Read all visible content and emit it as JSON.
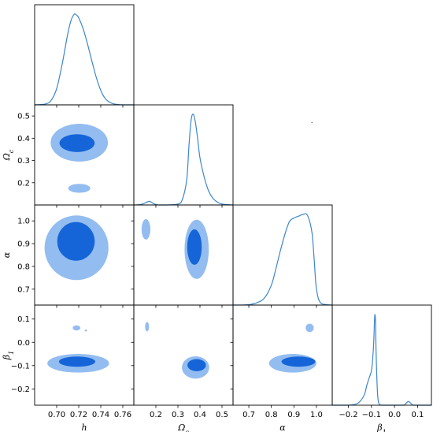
{
  "chart_data": {
    "type": "corner",
    "parameters": [
      {
        "key": "h",
        "label": "h",
        "range": [
          0.68,
          0.77
        ],
        "ticks": [
          0.7,
          0.72,
          0.74,
          0.76
        ],
        "tick_labels": [
          "0.70",
          "0.72",
          "0.74",
          "0.76"
        ]
      },
      {
        "key": "omega_c",
        "label": "Ωc",
        "range": [
          0.1,
          0.55
        ],
        "ticks": [
          0.2,
          0.3,
          0.4,
          0.5
        ],
        "tick_labels": [
          "0.2",
          "0.3",
          "0.4",
          "0.5"
        ]
      },
      {
        "key": "alpha",
        "label": "α",
        "range": [
          0.63,
          1.07
        ],
        "ticks": [
          0.7,
          0.8,
          0.9,
          1.0
        ],
        "tick_labels": [
          "0.7",
          "0.8",
          "0.9",
          "1.0"
        ]
      },
      {
        "key": "beta_1",
        "label": "β1",
        "range": [
          -0.27,
          0.16
        ],
        "ticks": [
          -0.2,
          -0.1,
          0.0,
          0.1
        ],
        "tick_labels": [
          "−0.2",
          "−0.1",
          "0.0",
          "0.1"
        ]
      }
    ],
    "colors": {
      "inner": "#1665d8",
      "outer": "#93bdf0",
      "line": "#3c86cc"
    },
    "marginals": [
      {
        "param": "h",
        "x": [
          0.68,
          0.69,
          0.695,
          0.7,
          0.705,
          0.71,
          0.713,
          0.716,
          0.718,
          0.72,
          0.724,
          0.728,
          0.732,
          0.736,
          0.74,
          0.744,
          0.748,
          0.752,
          0.76,
          0.77
        ],
        "y": [
          0.0,
          0.01,
          0.05,
          0.18,
          0.45,
          0.78,
          0.93,
          1.0,
          0.99,
          0.96,
          0.84,
          0.67,
          0.48,
          0.3,
          0.16,
          0.07,
          0.03,
          0.01,
          0.0,
          0.0
        ]
      },
      {
        "param": "omega_c",
        "x": [
          0.1,
          0.13,
          0.15,
          0.17,
          0.19,
          0.21,
          0.25,
          0.3,
          0.32,
          0.34,
          0.35,
          0.36,
          0.37,
          0.38,
          0.39,
          0.4,
          0.42,
          0.44,
          0.46,
          0.48,
          0.5,
          0.55
        ],
        "y": [
          0.0,
          0.005,
          0.02,
          0.04,
          0.015,
          0.0,
          0.0,
          0.01,
          0.06,
          0.28,
          0.65,
          0.94,
          1.0,
          0.9,
          0.72,
          0.52,
          0.3,
          0.15,
          0.07,
          0.03,
          0.01,
          0.0
        ]
      },
      {
        "param": "alpha",
        "x": [
          0.63,
          0.7,
          0.74,
          0.77,
          0.8,
          0.82,
          0.84,
          0.86,
          0.88,
          0.9,
          0.92,
          0.94,
          0.96,
          0.98,
          0.99,
          1.0,
          1.02,
          1.07
        ],
        "y": [
          0.0,
          0.005,
          0.03,
          0.08,
          0.22,
          0.4,
          0.6,
          0.78,
          0.92,
          0.96,
          0.98,
          1.0,
          0.99,
          0.8,
          0.5,
          0.18,
          0.02,
          0.0
        ]
      },
      {
        "param": "beta_1",
        "x": [
          -0.27,
          -0.2,
          -0.17,
          -0.15,
          -0.13,
          -0.12,
          -0.11,
          -0.1,
          -0.095,
          -0.09,
          -0.087,
          -0.085,
          -0.082,
          -0.08,
          -0.075,
          -0.07,
          -0.06,
          -0.04,
          0.0,
          0.04,
          0.06,
          0.08,
          0.1,
          0.16
        ],
        "y": [
          0.0,
          0.0,
          0.01,
          0.04,
          0.12,
          0.22,
          0.3,
          0.38,
          0.5,
          0.7,
          0.92,
          1.0,
          0.9,
          0.6,
          0.2,
          0.04,
          0.0,
          0.0,
          0.0,
          0.0,
          0.04,
          0.0,
          0.0,
          0.0
        ]
      }
    ],
    "contours": [
      {
        "x": "h",
        "y": "omega_c",
        "outer": [
          {
            "cx": 0.7205,
            "cy": 0.38,
            "rx": 0.026,
            "ry": 0.085
          },
          {
            "cx": 0.7205,
            "cy": 0.175,
            "rx": 0.01,
            "ry": 0.02
          }
        ],
        "inner": [
          {
            "cx": 0.7185,
            "cy": 0.378,
            "rx": 0.016,
            "ry": 0.04
          }
        ]
      },
      {
        "x": "h",
        "y": "alpha",
        "outer": [
          {
            "cx": 0.718,
            "cy": 0.882,
            "rx": 0.029,
            "ry": 0.142
          }
        ],
        "inner": [
          {
            "cx": 0.7175,
            "cy": 0.91,
            "rx": 0.017,
            "ry": 0.085
          }
        ]
      },
      {
        "x": "omega_c",
        "y": "alpha",
        "outer": [
          {
            "cx": 0.385,
            "cy": 0.875,
            "rx": 0.055,
            "ry": 0.13
          },
          {
            "cx": 0.155,
            "cy": 0.963,
            "rx": 0.02,
            "ry": 0.045
          }
        ],
        "inner": [
          {
            "cx": 0.375,
            "cy": 0.885,
            "rx": 0.033,
            "ry": 0.078
          }
        ]
      },
      {
        "x": "h",
        "y": "beta_1",
        "outer": [
          {
            "cx": 0.7195,
            "cy": -0.09,
            "rx": 0.028,
            "ry": 0.04
          },
          {
            "cx": 0.718,
            "cy": 0.062,
            "rx": 0.0035,
            "ry": 0.011
          },
          {
            "cx": 0.7265,
            "cy": 0.051,
            "rx": 0.001,
            "ry": 0.004
          }
        ],
        "inner": [
          {
            "cx": 0.7185,
            "cy": -0.083,
            "rx": 0.0165,
            "ry": 0.022
          }
        ]
      },
      {
        "x": "omega_c",
        "y": "beta_1",
        "outer": [
          {
            "cx": 0.38,
            "cy": -0.108,
            "rx": 0.062,
            "ry": 0.048
          },
          {
            "cx": 0.16,
            "cy": 0.067,
            "rx": 0.009,
            "ry": 0.02
          }
        ],
        "inner": [
          {
            "cx": 0.385,
            "cy": -0.098,
            "rx": 0.042,
            "ry": 0.026
          }
        ]
      },
      {
        "x": "alpha",
        "y": "beta_1",
        "outer": [
          {
            "cx": 0.895,
            "cy": -0.09,
            "rx": 0.105,
            "ry": 0.04
          },
          {
            "cx": 0.97,
            "cy": 0.062,
            "rx": 0.018,
            "ry": 0.018
          }
        ],
        "inner": [
          {
            "cx": 0.92,
            "cy": -0.083,
            "rx": 0.075,
            "ry": 0.022
          }
        ]
      }
    ],
    "stray_points": [
      {
        "x": "alpha",
        "y": "omega_c",
        "x_value": 0.98,
        "y_value": 0.47
      }
    ]
  }
}
